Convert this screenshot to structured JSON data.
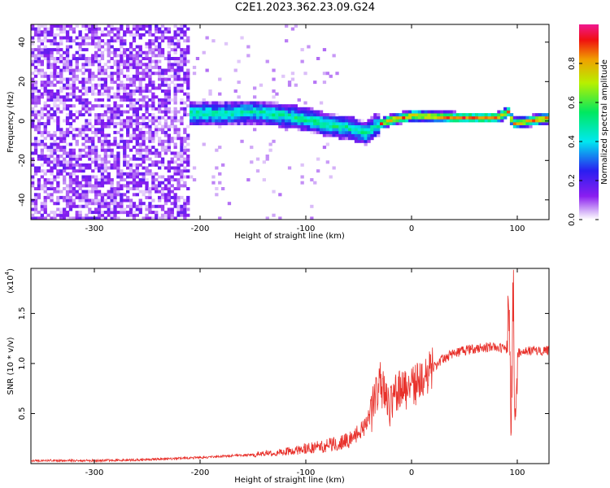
{
  "title": "C2E1.2023.362.23.09.G24",
  "chart_data": [
    {
      "type": "heatmap",
      "xlabel": "Height of straight line (km)",
      "ylabel": "Frequency (Hz)",
      "xlim": [
        -360,
        130
      ],
      "ylim": [
        -50,
        49
      ],
      "xticks": [
        -300,
        -200,
        -100,
        0,
        100
      ],
      "yticks": [
        -40,
        -20,
        0,
        20,
        40
      ],
      "colorbar": {
        "label": "Normalized spectral amplitude",
        "range": [
          0.0,
          1.0
        ],
        "ticks": [
          "0.0",
          "0.2",
          "0.4",
          "0.6",
          "0.8"
        ],
        "colormap": [
          "#ffffff",
          "#d8b8f8",
          "#8a1ef0",
          "#2a1ef0",
          "#00e8f0",
          "#00e860",
          "#b8f000",
          "#f0a000",
          "#f01010",
          "#f01890"
        ]
      },
      "noise_region": {
        "x_range": [
          -360,
          -210
        ],
        "freq_range": [
          -50,
          49
        ]
      },
      "signal_ridge": {
        "x": [
          -210,
          -180,
          -150,
          -120,
          -100,
          -80,
          -60,
          -45,
          -35,
          -20,
          0,
          40,
          80,
          90,
          95,
          130
        ],
        "freq": [
          3,
          3,
          4,
          2,
          0,
          -3,
          -4,
          -7,
          -3,
          0,
          2,
          1,
          1,
          4,
          -2,
          1
        ]
      }
    },
    {
      "type": "line",
      "xlabel": "Height of straight line (km)",
      "ylabel": "SNR (10 * v/v)",
      "y_scale_label": "(x10",
      "y_scale_exp": "4",
      "xlim": [
        -360,
        130
      ],
      "ylim": [
        0,
        19500
      ],
      "xticks": [
        -300,
        -200,
        -100,
        0,
        100
      ],
      "yticks": [
        5000,
        10000,
        15000
      ],
      "ytick_labels": [
        "0.5",
        "1.0",
        "1.5"
      ],
      "color": "#e8302a",
      "series": [
        {
          "x": [
            -360,
            -300,
            -250,
            -200,
            -150,
            -120,
            -100,
            -80,
            -60,
            -45,
            -35,
            -30,
            -25,
            -20,
            -15,
            -10,
            0,
            10,
            20,
            30,
            40,
            50,
            60,
            70,
            80,
            90,
            92,
            94,
            96,
            98,
            100,
            110,
            120,
            130
          ],
          "values": [
            300,
            300,
            400,
            600,
            900,
            1200,
            1500,
            1800,
            2300,
            3500,
            6000,
            8200,
            7000,
            5500,
            6800,
            7300,
            7700,
            8500,
            9600,
            10500,
            11000,
            11300,
            11500,
            11600,
            11700,
            11400,
            17000,
            2000,
            18500,
            3000,
            11000,
            11200,
            11300,
            11300
          ]
        }
      ]
    }
  ]
}
